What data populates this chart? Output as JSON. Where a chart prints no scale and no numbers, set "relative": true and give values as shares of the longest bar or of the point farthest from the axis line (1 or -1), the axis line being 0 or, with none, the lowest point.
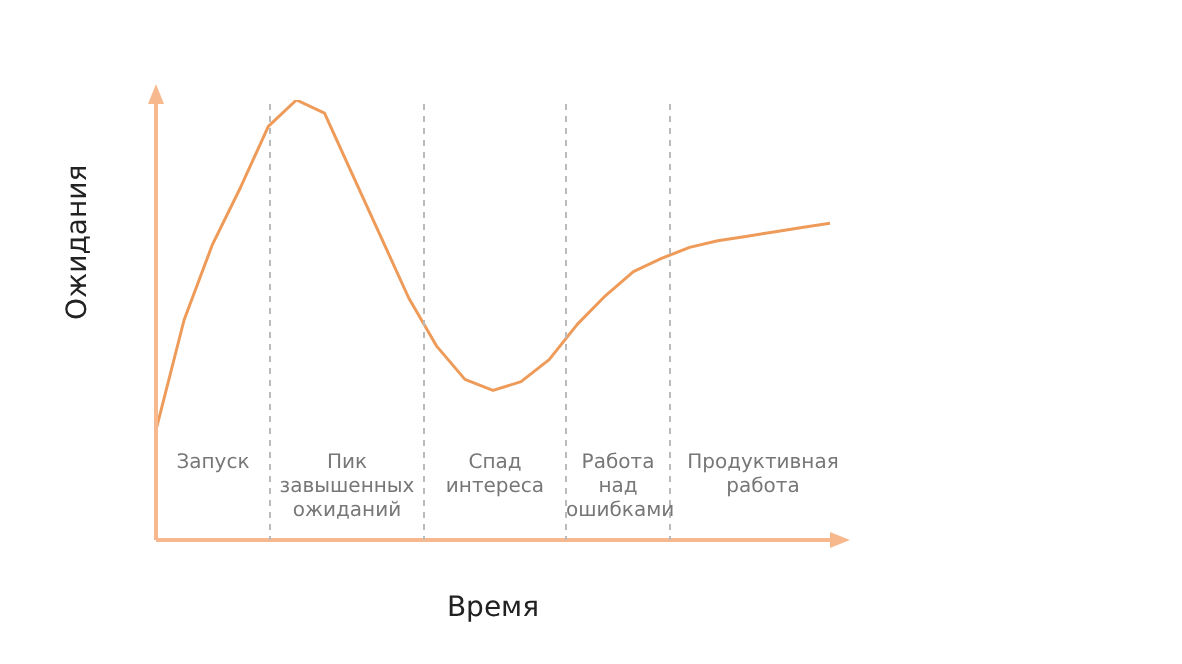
{
  "chart_data": {
    "type": "line",
    "relative": true,
    "xlabel": "Время",
    "ylabel": "Ожидания",
    "marker": "none",
    "line_style": "solid",
    "categories": [
      null,
      null,
      null,
      null,
      null,
      null,
      null,
      null,
      null,
      null,
      null,
      null,
      null,
      null,
      null,
      null,
      null,
      null,
      null,
      null,
      null,
      null,
      null,
      null,
      null
    ],
    "series": [
      {
        "color": "#ee9b5a",
        "values": [
          0.25,
          0.5,
          0.67,
          0.8,
          0.94,
          1,
          0.97,
          0.83,
          0.69,
          0.55,
          0.44,
          0.365,
          0.34,
          0.36,
          0.41,
          0.49,
          0.555,
          0.61,
          0.64,
          0.665,
          0.68,
          0.69,
          0.7,
          0.71,
          0.72
        ]
      }
    ],
    "annotations": [
      "Запуск",
      "Пик завышенных ожиданий",
      "Спад интереса",
      "Работа над ошибками",
      "Продуктивная работа"
    ]
  }
}
